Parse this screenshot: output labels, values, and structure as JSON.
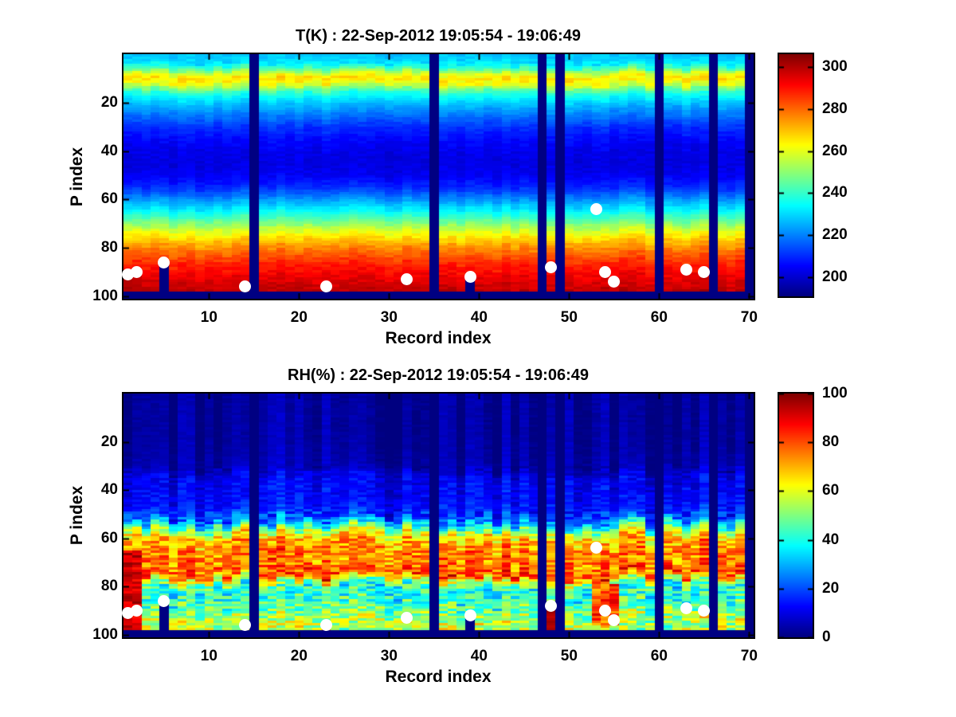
{
  "figure": {
    "background": "#ffffff",
    "mask_color": "#000082",
    "dot_color": "#ffffff"
  },
  "chart_data": [
    {
      "type": "heatmap",
      "title": "T(K) : 22-Sep-2012 19:05:54 - 19:06:49",
      "xlabel": "Record index",
      "ylabel": "P index",
      "colormap": "jet",
      "x_ticks": [
        10,
        20,
        30,
        40,
        50,
        60,
        70
      ],
      "y_ticks": [
        20,
        40,
        60,
        80,
        100
      ],
      "n_records": 70,
      "n_levels": 101,
      "y_axis_reversed": true,
      "value_range": [
        191,
        306
      ],
      "colorbar_ticks": [
        200,
        220,
        240,
        260,
        280,
        300
      ],
      "legend_position": "right-colorbar",
      "grid": false,
      "missing_records": [
        15,
        35,
        47,
        49,
        60,
        66,
        70
      ],
      "bottom_mask_from_p": 99,
      "masked_below_surface_records": [
        5,
        39
      ],
      "profile": [
        [
          1,
          228
        ],
        [
          4,
          232
        ],
        [
          6,
          243
        ],
        [
          8,
          258
        ],
        [
          10,
          266
        ],
        [
          12,
          262
        ],
        [
          14,
          248
        ],
        [
          16,
          238
        ],
        [
          20,
          228
        ],
        [
          25,
          219
        ],
        [
          30,
          211
        ],
        [
          35,
          206
        ],
        [
          40,
          203
        ],
        [
          45,
          202
        ],
        [
          50,
          204
        ],
        [
          55,
          210
        ],
        [
          58,
          217
        ],
        [
          62,
          227
        ],
        [
          66,
          238
        ],
        [
          70,
          250
        ],
        [
          74,
          262
        ],
        [
          78,
          272
        ],
        [
          82,
          280
        ],
        [
          86,
          287
        ],
        [
          90,
          292
        ],
        [
          94,
          296
        ],
        [
          97,
          298
        ],
        [
          99,
          299
        ]
      ],
      "noise": {
        "column_amp": 1.5,
        "column_p_shift": 1,
        "default_amp": 2,
        "bands": [
          {
            "p": [
              4,
              16
            ],
            "amp": 4
          },
          {
            "p": [
              70,
              99
            ],
            "amp": 3
          }
        ]
      },
      "patches": [
        {
          "records": [
            1,
            2
          ],
          "p": [
            92,
            98
          ],
          "value": 300,
          "amp": 2
        }
      ],
      "surface_dots": [
        {
          "record": 1,
          "p": 91
        },
        {
          "record": 2,
          "p": 90
        },
        {
          "record": 5,
          "p": 86
        },
        {
          "record": 14,
          "p": 96
        },
        {
          "record": 23,
          "p": 96
        },
        {
          "record": 32,
          "p": 93
        },
        {
          "record": 39,
          "p": 92
        },
        {
          "record": 48,
          "p": 88
        },
        {
          "record": 53,
          "p": 64
        },
        {
          "record": 54,
          "p": 90
        },
        {
          "record": 55,
          "p": 94
        },
        {
          "record": 63,
          "p": 89
        },
        {
          "record": 65,
          "p": 90
        }
      ]
    },
    {
      "type": "heatmap",
      "title": "RH(%) : 22-Sep-2012 19:05:54 - 19:06:49",
      "xlabel": "Record index",
      "ylabel": "P index",
      "colormap": "jet",
      "x_ticks": [
        10,
        20,
        30,
        40,
        50,
        60,
        70
      ],
      "y_ticks": [
        20,
        40,
        60,
        80,
        100
      ],
      "n_records": 70,
      "n_levels": 101,
      "y_axis_reversed": true,
      "value_range": [
        0,
        100
      ],
      "colorbar_ticks": [
        0,
        20,
        40,
        60,
        80,
        100
      ],
      "legend_position": "right-colorbar",
      "grid": false,
      "missing_records": [
        15,
        35,
        47,
        49,
        60,
        66,
        70
      ],
      "bottom_mask_from_p": 99,
      "masked_below_surface_records": [
        5,
        39
      ],
      "profile": [
        [
          1,
          3
        ],
        [
          15,
          3
        ],
        [
          25,
          4
        ],
        [
          31,
          5
        ],
        [
          33,
          9
        ],
        [
          36,
          12
        ],
        [
          40,
          12
        ],
        [
          44,
          13
        ],
        [
          48,
          15
        ],
        [
          51,
          20
        ],
        [
          53,
          28
        ],
        [
          55,
          42
        ],
        [
          57,
          57
        ],
        [
          59,
          66
        ],
        [
          61,
          71
        ],
        [
          64,
          74
        ],
        [
          67,
          77
        ],
        [
          70,
          74
        ],
        [
          72,
          77
        ],
        [
          74,
          82
        ],
        [
          75,
          84
        ],
        [
          76,
          72
        ],
        [
          77,
          60
        ],
        [
          79,
          46
        ],
        [
          81,
          40
        ],
        [
          84,
          42
        ],
        [
          87,
          45
        ],
        [
          90,
          50
        ],
        [
          93,
          55
        ],
        [
          95,
          58
        ],
        [
          97,
          55
        ],
        [
          99,
          50
        ]
      ],
      "noise": {
        "column_amp": 5,
        "column_p_shift": 3,
        "default_amp": 2,
        "bands": [
          {
            "p": [
              1,
              31
            ],
            "amp": 1.5
          },
          {
            "p": [
              31,
              50
            ],
            "amp": 4
          },
          {
            "p": [
              50,
              58
            ],
            "amp": 10
          },
          {
            "p": [
              58,
              77
            ],
            "amp": 11
          },
          {
            "p": [
              77,
              99
            ],
            "amp": 13
          }
        ]
      },
      "patches": [
        {
          "records": [
            1,
            2
          ],
          "p": [
            66,
            98
          ],
          "value": 92,
          "amp": 7
        },
        {
          "records": [
            48,
            48
          ],
          "p": [
            89,
            98
          ],
          "value": 96,
          "amp": 3
        },
        {
          "records": [
            53,
            55
          ],
          "p": [
            80,
            96
          ],
          "value": 80,
          "amp": 12
        }
      ],
      "surface_dots": [
        {
          "record": 1,
          "p": 91
        },
        {
          "record": 2,
          "p": 90
        },
        {
          "record": 5,
          "p": 86
        },
        {
          "record": 14,
          "p": 96
        },
        {
          "record": 23,
          "p": 96
        },
        {
          "record": 32,
          "p": 93
        },
        {
          "record": 39,
          "p": 92
        },
        {
          "record": 48,
          "p": 88
        },
        {
          "record": 53,
          "p": 64
        },
        {
          "record": 54,
          "p": 90
        },
        {
          "record": 55,
          "p": 94
        },
        {
          "record": 63,
          "p": 89
        },
        {
          "record": 65,
          "p": 90
        }
      ]
    }
  ]
}
